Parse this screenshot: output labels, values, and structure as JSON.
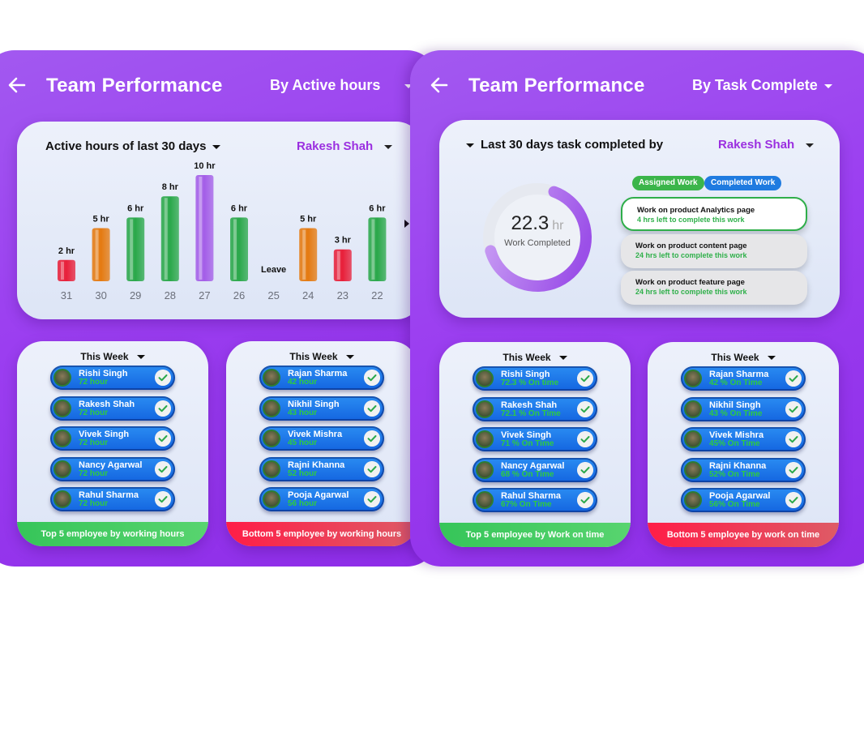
{
  "left_screen": {
    "title": "Team Performance",
    "filter": "By Active hours",
    "chart_heading": "Active hours of last 30 days",
    "person": "Rakesh Shah"
  },
  "right_screen": {
    "title": "Team Performance",
    "filter": "By Task Complete",
    "task_heading": "Last 30 days task completed by",
    "person": "Rakesh Shah",
    "work_completed_value": "22.3",
    "work_completed_unit": "hr",
    "work_completed_label": "Work Completed",
    "work_completed_progress": 0.65,
    "tabs": [
      {
        "label": "Assigned Work",
        "color": "#3bb54a"
      },
      {
        "label": "Completed Work",
        "color": "#1f7be0"
      }
    ],
    "tasks": [
      {
        "title": "Work on product Analytics page",
        "sub": "4 hrs left to complete this work"
      },
      {
        "title": "Work on product content page",
        "sub": "24 hrs left to complete this work"
      },
      {
        "title": "Work on product feature page",
        "sub": "24 hrs left to complete this work"
      }
    ]
  },
  "chart_data": {
    "type": "bar",
    "title": "Active hours of last 30 days",
    "categories": [
      "31",
      "30",
      "29",
      "28",
      "27",
      "26",
      "25",
      "24",
      "23",
      "22"
    ],
    "values": [
      2,
      5,
      6,
      8,
      10,
      6,
      null,
      5,
      3,
      6
    ],
    "value_labels": [
      "2 hr",
      "5 hr",
      "6 hr",
      "8 hr",
      "10 hr",
      "6 hr",
      "Leave",
      "5 hr",
      "3 hr",
      "6 hr"
    ],
    "bar_colors": [
      "#e8203a",
      "#e57a10",
      "#2aa84a",
      "#2aa84a",
      "#a45ee8",
      "#2aa84a",
      "",
      "#e57a10",
      "#e8203a",
      "#2aa84a"
    ],
    "ylim": [
      0,
      10
    ]
  },
  "lists": {
    "week_label": "This Week",
    "left_top": {
      "footer": "Top 5 employee by working hours",
      "items": [
        {
          "name": "Rishi Singh",
          "sub": "72 hour"
        },
        {
          "name": "Rakesh Shah",
          "sub": "72 hour"
        },
        {
          "name": "Vivek Singh",
          "sub": "72 hour"
        },
        {
          "name": "Nancy Agarwal",
          "sub": "72 hour"
        },
        {
          "name": "Rahul Sharma",
          "sub": "72 hour"
        }
      ]
    },
    "left_bottom": {
      "footer": "Bottom 5 employee by working hours",
      "items": [
        {
          "name": "Rajan Sharma",
          "sub": "42 hour"
        },
        {
          "name": "Nikhil Singh",
          "sub": "43 hour"
        },
        {
          "name": "Vivek Mishra",
          "sub": "45 hour"
        },
        {
          "name": "Rajni Khanna",
          "sub": "52 hour"
        },
        {
          "name": "Pooja Agarwal",
          "sub": "56 hour"
        }
      ]
    },
    "right_top": {
      "footer": "Top 5 employee by Work on time",
      "items": [
        {
          "name": "Rishi Singh",
          "sub": "72.3 % On time"
        },
        {
          "name": "Rakesh Shah",
          "sub": "72.1 % On Time"
        },
        {
          "name": "Vivek Singh",
          "sub": "71 % On Time"
        },
        {
          "name": "Nancy Agarwal",
          "sub": "68 % On Time"
        },
        {
          "name": "Rahul Sharma",
          "sub": "67% On Time"
        }
      ]
    },
    "right_bottom": {
      "footer": "Bottom 5 employee by work on time",
      "items": [
        {
          "name": "Rajan Sharma",
          "sub": "42 % On Time"
        },
        {
          "name": "Nikhil Singh",
          "sub": "43 % On Time"
        },
        {
          "name": "Vivek Mishra",
          "sub": "45% On Time"
        },
        {
          "name": "Rajni Khanna",
          "sub": "52% On Time"
        },
        {
          "name": "Pooja Agarwal",
          "sub": "56% On Time"
        }
      ]
    }
  }
}
